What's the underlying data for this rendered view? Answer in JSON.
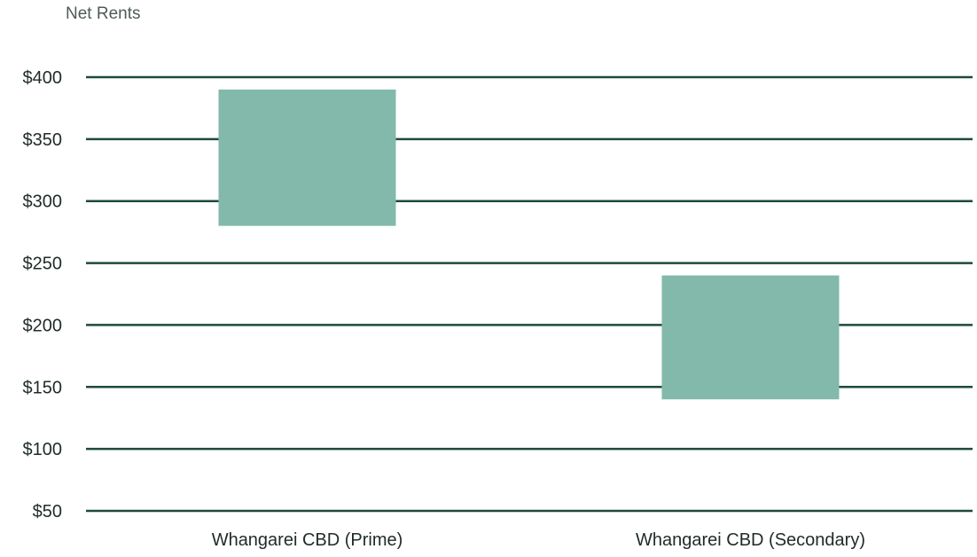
{
  "chart_data": {
    "type": "bar",
    "subtype": "floating-range",
    "title": "",
    "ylabel": "Net Rents",
    "xlabel": "",
    "categories": [
      "Whangarei CBD (Prime)",
      "Whangarei CBD (Secondary)"
    ],
    "ranges": [
      {
        "category": "Whangarei CBD (Prime)",
        "low": 280,
        "high": 390
      },
      {
        "category": "Whangarei CBD (Secondary)",
        "low": 140,
        "high": 240
      }
    ],
    "ylim": [
      50,
      400
    ],
    "yticks": [
      400,
      350,
      300,
      250,
      200,
      150,
      100,
      50
    ],
    "ytick_labels": [
      "$400",
      "$350",
      "$300",
      "$250",
      "$200",
      "$150",
      "$100",
      "$50"
    ],
    "grid": true,
    "legend": "none",
    "colors": {
      "bar": "#82b9aa",
      "grid": "#1d4a3c",
      "tick_text": "#1f2b29",
      "title_text": "#4f5b59"
    }
  }
}
